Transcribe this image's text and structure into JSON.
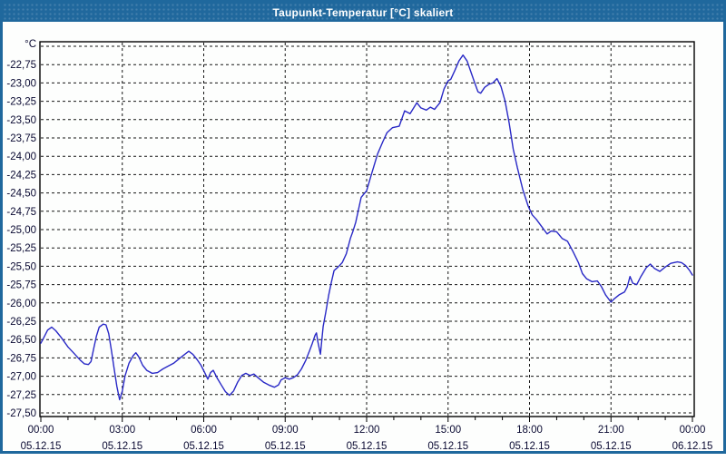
{
  "window": {
    "title": "Taupunkt-Temperatur [°C] skaliert"
  },
  "colors": {
    "titlebar": "#20689D",
    "title_text": "#FFFFFF",
    "window_border": "#1F689D",
    "background": "#FDFEFD",
    "line": "#2929C6",
    "grid": "#141414",
    "frame": "#000000",
    "label_text": "#0A0A32"
  },
  "chart_data": {
    "type": "line",
    "title": "Taupunkt-Temperatur [°C] skaliert",
    "xlabel": "",
    "ylabel": "°C",
    "grid": "dashed",
    "legend": "none",
    "ylim": [
      -27.5,
      -22.5
    ],
    "xlim_hours": [
      0,
      24
    ],
    "y_ticks": [
      {
        "label": "-22,75",
        "value": -22.75
      },
      {
        "label": "-23,00",
        "value": -23.0
      },
      {
        "label": "-23,25",
        "value": -23.25
      },
      {
        "label": "-23,50",
        "value": -23.5
      },
      {
        "label": "-23,75",
        "value": -23.75
      },
      {
        "label": "-24,00",
        "value": -24.0
      },
      {
        "label": "-24,25",
        "value": -24.25
      },
      {
        "label": "-24,50",
        "value": -24.5
      },
      {
        "label": "-24,75",
        "value": -24.75
      },
      {
        "label": "-25,00",
        "value": -25.0
      },
      {
        "label": "-25,25",
        "value": -25.25
      },
      {
        "label": "-25,50",
        "value": -25.5
      },
      {
        "label": "-25,75",
        "value": -25.75
      },
      {
        "label": "-26,00",
        "value": -26.0
      },
      {
        "label": "-26,25",
        "value": -26.25
      },
      {
        "label": "-26,50",
        "value": -26.5
      },
      {
        "label": "-26,75",
        "value": -26.75
      },
      {
        "label": "-27,00",
        "value": -27.0
      },
      {
        "label": "-27,25",
        "value": -27.25
      },
      {
        "label": "-27,50",
        "value": -27.5
      }
    ],
    "x_ticks": [
      {
        "hour": 0,
        "time": "00:00",
        "date": "05.12.15"
      },
      {
        "hour": 3,
        "time": "03:00",
        "date": "05.12.15"
      },
      {
        "hour": 6,
        "time": "06:00",
        "date": "05.12.15"
      },
      {
        "hour": 9,
        "time": "09:00",
        "date": "05.12.15"
      },
      {
        "hour": 12,
        "time": "12:00",
        "date": "05.12.15"
      },
      {
        "hour": 15,
        "time": "15:00",
        "date": "05.12.15"
      },
      {
        "hour": 18,
        "time": "18:00",
        "date": "05.12.15"
      },
      {
        "hour": 21,
        "time": "21:00",
        "date": "05.12.15"
      },
      {
        "hour": 24,
        "time": "00:00",
        "date": "06.12.15"
      }
    ],
    "series": [
      {
        "name": "Taupunkt-Temperatur",
        "points": [
          [
            0.0,
            -26.55
          ],
          [
            0.1,
            -26.48
          ],
          [
            0.25,
            -26.37
          ],
          [
            0.4,
            -26.33
          ],
          [
            0.55,
            -26.38
          ],
          [
            0.75,
            -26.47
          ],
          [
            1.0,
            -26.6
          ],
          [
            1.2,
            -26.68
          ],
          [
            1.45,
            -26.78
          ],
          [
            1.6,
            -26.83
          ],
          [
            1.75,
            -26.84
          ],
          [
            1.85,
            -26.8
          ],
          [
            1.95,
            -26.62
          ],
          [
            2.05,
            -26.45
          ],
          [
            2.15,
            -26.33
          ],
          [
            2.3,
            -26.29
          ],
          [
            2.4,
            -26.3
          ],
          [
            2.5,
            -26.42
          ],
          [
            2.6,
            -26.65
          ],
          [
            2.7,
            -26.9
          ],
          [
            2.8,
            -27.14
          ],
          [
            2.9,
            -27.32
          ],
          [
            3.0,
            -27.2
          ],
          [
            3.1,
            -27.0
          ],
          [
            3.25,
            -26.82
          ],
          [
            3.4,
            -26.72
          ],
          [
            3.5,
            -26.68
          ],
          [
            3.6,
            -26.73
          ],
          [
            3.75,
            -26.85
          ],
          [
            3.9,
            -26.92
          ],
          [
            4.1,
            -26.96
          ],
          [
            4.3,
            -26.95
          ],
          [
            4.5,
            -26.9
          ],
          [
            4.7,
            -26.86
          ],
          [
            4.9,
            -26.82
          ],
          [
            5.1,
            -26.76
          ],
          [
            5.3,
            -26.7
          ],
          [
            5.45,
            -26.66
          ],
          [
            5.6,
            -26.7
          ],
          [
            5.75,
            -26.77
          ],
          [
            5.9,
            -26.85
          ],
          [
            6.05,
            -26.96
          ],
          [
            6.15,
            -27.04
          ],
          [
            6.25,
            -26.95
          ],
          [
            6.35,
            -26.92
          ],
          [
            6.5,
            -27.03
          ],
          [
            6.65,
            -27.12
          ],
          [
            6.8,
            -27.21
          ],
          [
            6.95,
            -27.26
          ],
          [
            7.1,
            -27.2
          ],
          [
            7.25,
            -27.08
          ],
          [
            7.4,
            -26.99
          ],
          [
            7.55,
            -26.96
          ],
          [
            7.7,
            -26.99
          ],
          [
            7.85,
            -26.97
          ],
          [
            8.0,
            -27.02
          ],
          [
            8.2,
            -27.08
          ],
          [
            8.4,
            -27.12
          ],
          [
            8.6,
            -27.15
          ],
          [
            8.75,
            -27.12
          ],
          [
            8.85,
            -27.05
          ],
          [
            9.0,
            -27.02
          ],
          [
            9.15,
            -27.04
          ],
          [
            9.3,
            -27.02
          ],
          [
            9.45,
            -26.98
          ],
          [
            9.6,
            -26.9
          ],
          [
            9.75,
            -26.79
          ],
          [
            9.9,
            -26.65
          ],
          [
            10.0,
            -26.55
          ],
          [
            10.1,
            -26.44
          ],
          [
            10.15,
            -26.41
          ],
          [
            10.2,
            -26.52
          ],
          [
            10.3,
            -26.7
          ],
          [
            10.4,
            -26.32
          ],
          [
            10.5,
            -26.12
          ],
          [
            10.6,
            -25.9
          ],
          [
            10.7,
            -25.72
          ],
          [
            10.8,
            -25.56
          ],
          [
            10.95,
            -25.51
          ],
          [
            11.1,
            -25.45
          ],
          [
            11.25,
            -25.33
          ],
          [
            11.4,
            -25.12
          ],
          [
            11.5,
            -25.02
          ],
          [
            11.6,
            -24.9
          ],
          [
            11.8,
            -24.56
          ],
          [
            12.0,
            -24.47
          ],
          [
            12.15,
            -24.28
          ],
          [
            12.4,
            -23.97
          ],
          [
            12.6,
            -23.8
          ],
          [
            12.75,
            -23.68
          ],
          [
            12.95,
            -23.61
          ],
          [
            13.2,
            -23.59
          ],
          [
            13.4,
            -23.38
          ],
          [
            13.6,
            -23.42
          ],
          [
            13.85,
            -23.27
          ],
          [
            14.0,
            -23.34
          ],
          [
            14.2,
            -23.37
          ],
          [
            14.35,
            -23.33
          ],
          [
            14.5,
            -23.36
          ],
          [
            14.7,
            -23.27
          ],
          [
            14.85,
            -23.08
          ],
          [
            15.0,
            -22.97
          ],
          [
            15.1,
            -22.95
          ],
          [
            15.25,
            -22.83
          ],
          [
            15.4,
            -22.7
          ],
          [
            15.55,
            -22.62
          ],
          [
            15.7,
            -22.7
          ],
          [
            15.85,
            -22.86
          ],
          [
            16.0,
            -23.02
          ],
          [
            16.1,
            -23.12
          ],
          [
            16.2,
            -23.14
          ],
          [
            16.35,
            -23.06
          ],
          [
            16.5,
            -23.02
          ],
          [
            16.65,
            -23.0
          ],
          [
            16.8,
            -22.94
          ],
          [
            16.95,
            -23.05
          ],
          [
            17.1,
            -23.25
          ],
          [
            17.25,
            -23.55
          ],
          [
            17.4,
            -23.9
          ],
          [
            17.55,
            -24.15
          ],
          [
            17.75,
            -24.45
          ],
          [
            17.95,
            -24.68
          ],
          [
            18.1,
            -24.8
          ],
          [
            18.25,
            -24.86
          ],
          [
            18.45,
            -24.96
          ],
          [
            18.65,
            -25.06
          ],
          [
            18.8,
            -25.02
          ],
          [
            19.0,
            -25.03
          ],
          [
            19.2,
            -25.12
          ],
          [
            19.4,
            -25.16
          ],
          [
            19.6,
            -25.3
          ],
          [
            19.8,
            -25.45
          ],
          [
            19.95,
            -25.6
          ],
          [
            20.1,
            -25.67
          ],
          [
            20.3,
            -25.71
          ],
          [
            20.5,
            -25.7
          ],
          [
            20.65,
            -25.78
          ],
          [
            20.8,
            -25.89
          ],
          [
            21.0,
            -25.99
          ],
          [
            21.1,
            -25.95
          ],
          [
            21.3,
            -25.89
          ],
          [
            21.5,
            -25.85
          ],
          [
            21.6,
            -25.78
          ],
          [
            21.7,
            -25.64
          ],
          [
            21.8,
            -25.73
          ],
          [
            21.95,
            -25.75
          ],
          [
            22.1,
            -25.64
          ],
          [
            22.3,
            -25.52
          ],
          [
            22.45,
            -25.47
          ],
          [
            22.6,
            -25.53
          ],
          [
            22.8,
            -25.57
          ],
          [
            23.0,
            -25.51
          ],
          [
            23.2,
            -25.46
          ],
          [
            23.45,
            -25.44
          ],
          [
            23.6,
            -25.45
          ],
          [
            23.75,
            -25.49
          ],
          [
            23.9,
            -25.56
          ],
          [
            24.0,
            -25.62
          ]
        ]
      }
    ]
  }
}
